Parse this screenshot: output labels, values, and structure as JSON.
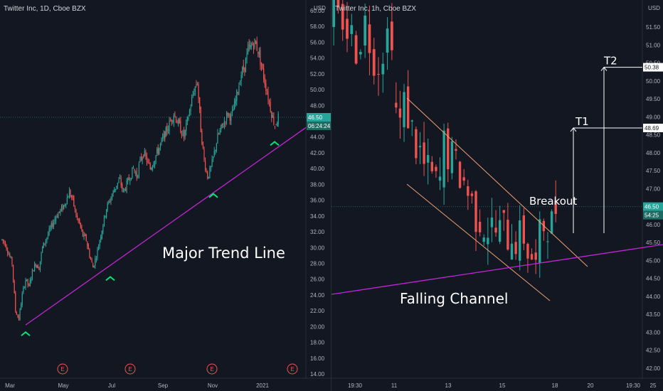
{
  "left": {
    "title": "Twitter Inc, 1D, Cboe BZX",
    "currency": "USD",
    "y_ticks": [
      "60.00",
      "58.00",
      "56.00",
      "54.00",
      "52.00",
      "50.00",
      "48.00",
      "46.00",
      "44.00",
      "42.00",
      "40.00",
      "38.00",
      "36.00",
      "34.00",
      "32.00",
      "30.00",
      "28.00",
      "26.00",
      "24.00",
      "22.00",
      "20.00",
      "18.00",
      "16.00",
      "14.00"
    ],
    "x_ticks": [
      "Mar",
      "May",
      "Jul",
      "Sep",
      "Nov",
      "2021"
    ],
    "price_label": "46.50",
    "countdown_label": "06:24:24",
    "annotation": "Major Trend Line",
    "earnings_marker": "E"
  },
  "right": {
    "title": "Twitter Inc, 1h, Cboe BZX",
    "currency": "USD",
    "y_ticks": [
      "51.50",
      "51.00",
      "50.50",
      "50.00",
      "49.50",
      "49.00",
      "48.50",
      "48.00",
      "47.50",
      "47.00",
      "46.50",
      "46.00",
      "45.50",
      "45.00",
      "44.50",
      "44.00",
      "43.50",
      "43.00",
      "42.50",
      "42.00"
    ],
    "x_ticks": [
      "19:30",
      "11",
      "13",
      "15",
      "18",
      "20",
      "19:30",
      "25"
    ],
    "price_label": "46.50",
    "countdown_label": "54:25",
    "target1_price": "48.69",
    "target2_price": "50.38",
    "t1_label": "T1",
    "t2_label": "T2",
    "breakout_label": "Breakout",
    "channel_label": "Falling Channel"
  },
  "colors": {
    "background": "#131722",
    "up": "#26a69a",
    "down": "#ef5350",
    "trend_line": "#c026d3",
    "channel": "#f0a070",
    "arrow": "#00e676",
    "axis_text": "#b2b5be",
    "label_text": "#ffffff"
  },
  "chart_data": [
    {
      "type": "candlestick",
      "title": "Twitter Inc, 1D, Cboe BZX",
      "ylabel": "USD",
      "ylim": [
        14,
        60.5
      ],
      "x_labels": [
        "Mar",
        "May",
        "Jul",
        "Sep",
        "Nov",
        "2021"
      ],
      "last_price": 46.5,
      "trend_line": {
        "from": [
          "Mar",
          20.2
        ],
        "to": [
          "2021",
          44.7
        ]
      },
      "swing_lows": [
        20.2,
        27.2,
        37.7,
        44.3
      ],
      "earnings_markers": 4,
      "ohlc_path": [
        31,
        30.5,
        29.2,
        28,
        22,
        21,
        24,
        26,
        25,
        27,
        28,
        27.5,
        30,
        31,
        32,
        33,
        34,
        34.5,
        35,
        36,
        37,
        36,
        34,
        33,
        31.5,
        31,
        29,
        27.5,
        29,
        31,
        33,
        35,
        36,
        37,
        38,
        38.5,
        37,
        38,
        39,
        40,
        39,
        41,
        42,
        41,
        40,
        41,
        42,
        43,
        44,
        45,
        46,
        47,
        46,
        45,
        44,
        46,
        48,
        50,
        51,
        45,
        41,
        39,
        40,
        42,
        44,
        45,
        46,
        47,
        46.5,
        48,
        50,
        52,
        53,
        55,
        55.5,
        56,
        55,
        53,
        51,
        49,
        47,
        45.5,
        46.5
      ]
    },
    {
      "type": "candlestick",
      "title": "Twitter Inc, 1h, Cboe BZX",
      "ylabel": "USD",
      "ylim": [
        41.9,
        51.8
      ],
      "x_labels": [
        "19:30",
        "11",
        "13",
        "15",
        "18",
        "20",
        "19:30",
        "25"
      ],
      "last_price": 46.5,
      "targets": {
        "T1": 48.69,
        "T2": 50.38
      },
      "annotations": [
        "Breakout",
        "Falling Channel"
      ],
      "ohlc_path": [
        51.7,
        51.6,
        51.8,
        51.4,
        51.2,
        51.0,
        51.3,
        51.6,
        51.2,
        50.8,
        50.6,
        51.0,
        51.3,
        51.5,
        49.2,
        48.8,
        49.3,
        49.1,
        48.6,
        48.2,
        48.0,
        47.6,
        47.4,
        47.3,
        47.1,
        47.2,
        48.2,
        48.0,
        47.8,
        47.6,
        47.4,
        47.2,
        46.9,
        46.6,
        46.3,
        46.2,
        46.0,
        45.9,
        45.9,
        45.8,
        45.8,
        45.9,
        45.7,
        45.8,
        45.6,
        45.6,
        45.7,
        45.3,
        45.1,
        44.8,
        45.6,
        46.0,
        46.1,
        46.0,
        46.5
      ]
    }
  ]
}
